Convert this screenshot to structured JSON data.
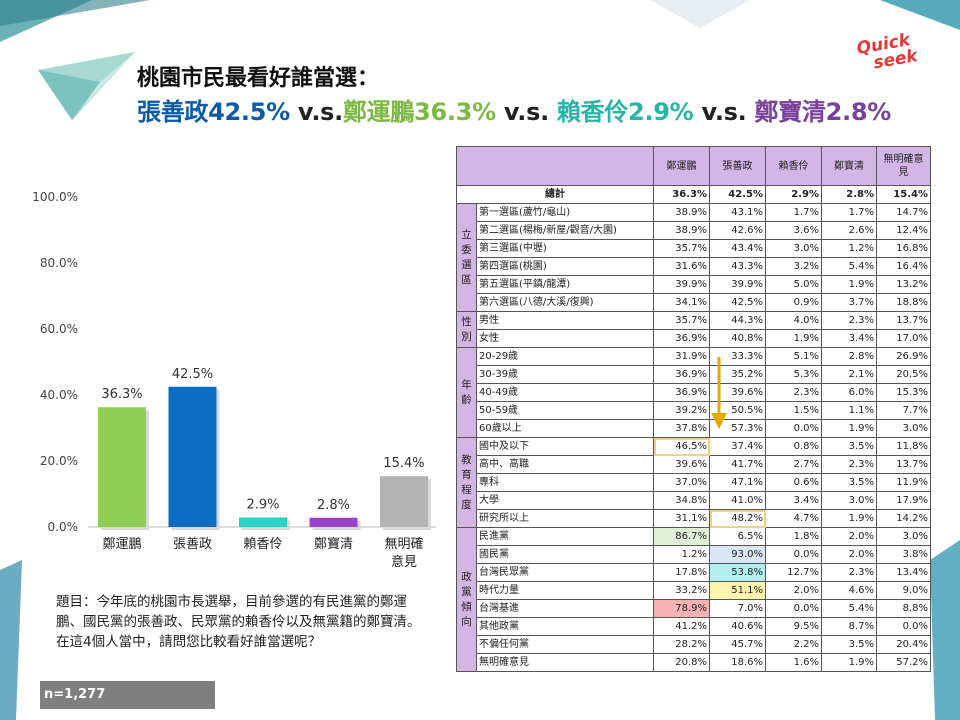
{
  "header": {
    "title_line1": "桃園市民最看好誰當選：",
    "segments": [
      {
        "text": "張善政42.5%",
        "color": "#0a5aa8"
      },
      {
        "text": " v.s.",
        "color": "#222222"
      },
      {
        "text": "鄭運鵬36.3%",
        "color": "#7cb942"
      },
      {
        "text": " v.s. ",
        "color": "#222222"
      },
      {
        "text": "賴香伶2.9%",
        "color": "#27b5a8"
      },
      {
        "text": " v.s. ",
        "color": "#222222"
      },
      {
        "text": "鄭寶清2.8%",
        "color": "#7a3f9a"
      }
    ]
  },
  "logo": {
    "line1": "Quick",
    "line2": "seek"
  },
  "chart_data": {
    "type": "bar",
    "categories": [
      "鄭運鵬",
      "張善政",
      "賴香伶",
      "鄭寶清",
      "無明確意見"
    ],
    "category_lines": [
      [
        "鄭運鵬"
      ],
      [
        "張善政"
      ],
      [
        "賴香伶"
      ],
      [
        "鄭寶清"
      ],
      [
        "無明確",
        "意見"
      ]
    ],
    "values": [
      36.3,
      42.5,
      2.9,
      2.8,
      15.4
    ],
    "data_labels": [
      "36.3%",
      "42.5%",
      "2.9%",
      "2.8%",
      "15.4%"
    ],
    "colors": [
      "#8fcf53",
      "#0b6dc4",
      "#2fd1c7",
      "#9a43c8",
      "#b3b3b3"
    ],
    "yticks": [
      "0.0%",
      "20.0%",
      "40.0%",
      "60.0%",
      "80.0%",
      "100.0%"
    ],
    "ylim": [
      0,
      100
    ],
    "grid": false
  },
  "question": "題目：今年底的桃園市長選舉，目前參選的有民進黨的鄭運鵬、國民黨的張善政、民眾黨的賴香伶以及無黨籍的鄭寶清。在這4個人當中，請問您比較看好誰當選呢？",
  "sample_size": "n=1,277",
  "table": {
    "columns": [
      "鄭運鵬",
      "張善政",
      "賴香伶",
      "鄭寶清",
      "無明確意見"
    ],
    "total": {
      "label": "總計",
      "values": [
        "36.3%",
        "42.5%",
        "2.9%",
        "2.8%",
        "15.4%"
      ]
    },
    "groups": [
      {
        "label": "立委選區",
        "rows": [
          {
            "label": "第一選區(蘆竹/龜山)",
            "values": [
              "38.9%",
              "43.1%",
              "1.7%",
              "1.7%",
              "14.7%"
            ]
          },
          {
            "label": "第二選區(楊梅/新屋/觀音/大園)",
            "values": [
              "38.9%",
              "42.6%",
              "3.6%",
              "2.6%",
              "12.4%"
            ]
          },
          {
            "label": "第三選區(中壢)",
            "values": [
              "35.7%",
              "43.4%",
              "3.0%",
              "1.2%",
              "16.8%"
            ]
          },
          {
            "label": "第四選區(桃園)",
            "values": [
              "31.6%",
              "43.3%",
              "3.2%",
              "5.4%",
              "16.4%"
            ]
          },
          {
            "label": "第五選區(平鎮/龍潭)",
            "values": [
              "39.9%",
              "39.9%",
              "5.0%",
              "1.9%",
              "13.2%"
            ]
          },
          {
            "label": "第六選區(八德/大溪/復興)",
            "values": [
              "34.1%",
              "42.5%",
              "0.9%",
              "3.7%",
              "18.8%"
            ]
          }
        ]
      },
      {
        "label": "性別",
        "rows": [
          {
            "label": "男性",
            "values": [
              "35.7%",
              "44.3%",
              "4.0%",
              "2.3%",
              "13.7%"
            ]
          },
          {
            "label": "女性",
            "values": [
              "36.9%",
              "40.8%",
              "1.9%",
              "3.4%",
              "17.0%"
            ]
          }
        ]
      },
      {
        "label": "年齡",
        "rows": [
          {
            "label": "20-29歲",
            "values": [
              "31.9%",
              "33.3%",
              "5.1%",
              "2.8%",
              "26.9%"
            ]
          },
          {
            "label": "30-39歲",
            "values": [
              "36.9%",
              "35.2%",
              "5.3%",
              "2.1%",
              "20.5%"
            ]
          },
          {
            "label": "40-49歲",
            "values": [
              "36.9%",
              "39.6%",
              "2.3%",
              "6.0%",
              "15.3%"
            ]
          },
          {
            "label": "50-59歲",
            "values": [
              "39.2%",
              "50.5%",
              "1.5%",
              "1.1%",
              "7.7%"
            ]
          },
          {
            "label": "60歲以上",
            "values": [
              "37.8%",
              "57.3%",
              "0.0%",
              "1.9%",
              "3.0%"
            ]
          }
        ]
      },
      {
        "label": "教育程度",
        "rows": [
          {
            "label": "國中及以下",
            "values": [
              "46.5%",
              "37.4%",
              "0.8%",
              "3.5%",
              "11.8%"
            ]
          },
          {
            "label": "高中、高職",
            "values": [
              "39.6%",
              "41.7%",
              "2.7%",
              "2.3%",
              "13.7%"
            ]
          },
          {
            "label": "專科",
            "values": [
              "37.0%",
              "47.1%",
              "0.6%",
              "3.5%",
              "11.9%"
            ]
          },
          {
            "label": "大學",
            "values": [
              "34.8%",
              "41.0%",
              "3.4%",
              "3.0%",
              "17.9%"
            ]
          },
          {
            "label": "研究所以上",
            "values": [
              "31.1%",
              "48.2%",
              "4.7%",
              "1.9%",
              "14.2%"
            ]
          }
        ]
      },
      {
        "label": "政黨傾向",
        "rows": [
          {
            "label": "民進黨",
            "values": [
              "86.7%",
              "6.5%",
              "1.8%",
              "2.0%",
              "3.0%"
            ]
          },
          {
            "label": "國民黨",
            "values": [
              "1.2%",
              "93.0%",
              "0.0%",
              "2.0%",
              "3.8%"
            ]
          },
          {
            "label": "台灣民眾黨",
            "values": [
              "17.8%",
              "53.8%",
              "12.7%",
              "2.3%",
              "13.4%"
            ]
          },
          {
            "label": "時代力量",
            "values": [
              "33.2%",
              "51.1%",
              "2.0%",
              "4.6%",
              "9.0%"
            ]
          },
          {
            "label": "台灣基進",
            "values": [
              "78.9%",
              "7.0%",
              "0.0%",
              "5.4%",
              "8.8%"
            ]
          },
          {
            "label": "其他政黨",
            "values": [
              "41.2%",
              "40.6%",
              "9.5%",
              "8.7%",
              "0.0%"
            ]
          },
          {
            "label": "不偏任何黨",
            "values": [
              "28.2%",
              "45.7%",
              "2.2%",
              "3.5%",
              "20.4%"
            ]
          },
          {
            "label": "無明確意見",
            "values": [
              "20.8%",
              "18.6%",
              "1.6%",
              "1.9%",
              "57.2%"
            ]
          }
        ]
      }
    ],
    "highlight_colors": {
      "blue": "#dae6f6",
      "yellow": "#fff3b0",
      "green": "#dff0d8",
      "teal": "#b3efef",
      "red": "#f6b1b5"
    }
  }
}
